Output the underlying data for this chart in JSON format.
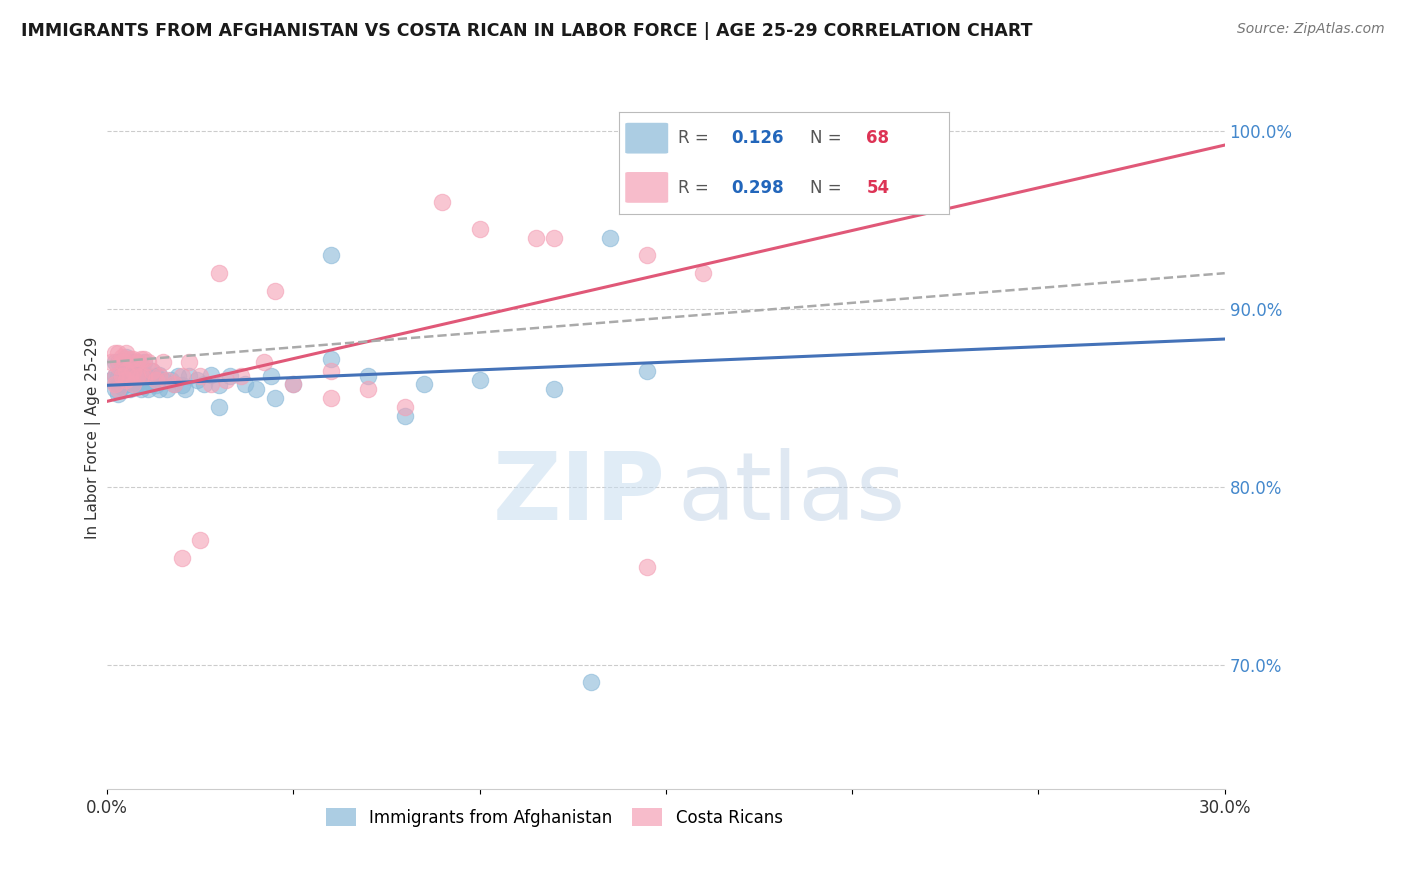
{
  "title": "IMMIGRANTS FROM AFGHANISTAN VS COSTA RICAN IN LABOR FORCE | AGE 25-29 CORRELATION CHART",
  "source": "Source: ZipAtlas.com",
  "ylabel": "In Labor Force | Age 25-29",
  "xlim": [
    0.0,
    0.3
  ],
  "ylim": [
    0.63,
    1.025
  ],
  "xticks": [
    0.0,
    0.05,
    0.1,
    0.15,
    0.2,
    0.25,
    0.3
  ],
  "xticklabels": [
    "0.0%",
    "",
    "",
    "",
    "",
    "",
    "30.0%"
  ],
  "yticks_right": [
    0.7,
    0.8,
    0.9,
    1.0
  ],
  "ytick_labels_right": [
    "70.0%",
    "80.0%",
    "90.0%",
    "100.0%"
  ],
  "blue_color": "#89b8d8",
  "pink_color": "#f4a0b5",
  "blue_line_color": "#4472b8",
  "pink_line_color": "#e05878",
  "gray_dash_color": "#aaaaaa",
  "watermark_zip_color": "#c8ddf0",
  "watermark_atlas_color": "#b8cce4",
  "afg_x": [
    0.001,
    0.002,
    0.002,
    0.002,
    0.003,
    0.003,
    0.003,
    0.003,
    0.004,
    0.004,
    0.004,
    0.004,
    0.005,
    0.005,
    0.005,
    0.005,
    0.006,
    0.006,
    0.006,
    0.007,
    0.007,
    0.007,
    0.008,
    0.008,
    0.008,
    0.009,
    0.009,
    0.009,
    0.01,
    0.01,
    0.01,
    0.011,
    0.011,
    0.012,
    0.012,
    0.013,
    0.013,
    0.014,
    0.014,
    0.015,
    0.016,
    0.017,
    0.018,
    0.019,
    0.02,
    0.021,
    0.022,
    0.024,
    0.026,
    0.028,
    0.03,
    0.033,
    0.037,
    0.04,
    0.044,
    0.05,
    0.06,
    0.07,
    0.085,
    0.1,
    0.12,
    0.135,
    0.06,
    0.13,
    0.145,
    0.03,
    0.045,
    0.08
  ],
  "afg_y": [
    0.86,
    0.862,
    0.855,
    0.87,
    0.858,
    0.862,
    0.87,
    0.852,
    0.86,
    0.856,
    0.863,
    0.87,
    0.858,
    0.862,
    0.868,
    0.873,
    0.855,
    0.862,
    0.87,
    0.857,
    0.863,
    0.86,
    0.858,
    0.863,
    0.87,
    0.855,
    0.86,
    0.868,
    0.857,
    0.863,
    0.87,
    0.855,
    0.862,
    0.858,
    0.865,
    0.857,
    0.862,
    0.855,
    0.863,
    0.86,
    0.855,
    0.86,
    0.858,
    0.862,
    0.857,
    0.855,
    0.862,
    0.86,
    0.858,
    0.863,
    0.857,
    0.862,
    0.858,
    0.855,
    0.862,
    0.858,
    0.872,
    0.862,
    0.858,
    0.86,
    0.855,
    0.94,
    0.93,
    0.69,
    0.865,
    0.845,
    0.85,
    0.84
  ],
  "cr_x": [
    0.001,
    0.002,
    0.002,
    0.002,
    0.003,
    0.003,
    0.003,
    0.004,
    0.004,
    0.004,
    0.005,
    0.005,
    0.005,
    0.006,
    0.006,
    0.007,
    0.007,
    0.007,
    0.008,
    0.008,
    0.009,
    0.009,
    0.01,
    0.01,
    0.011,
    0.012,
    0.013,
    0.014,
    0.015,
    0.016,
    0.018,
    0.02,
    0.022,
    0.025,
    0.028,
    0.032,
    0.036,
    0.042,
    0.05,
    0.06,
    0.07,
    0.09,
    0.1,
    0.12,
    0.145,
    0.16,
    0.03,
    0.045,
    0.06,
    0.08,
    0.025,
    0.02,
    0.115,
    0.145
  ],
  "cr_y": [
    0.87,
    0.875,
    0.862,
    0.858,
    0.875,
    0.868,
    0.855,
    0.873,
    0.862,
    0.87,
    0.875,
    0.865,
    0.86,
    0.872,
    0.862,
    0.872,
    0.865,
    0.858,
    0.87,
    0.862,
    0.872,
    0.862,
    0.872,
    0.862,
    0.87,
    0.865,
    0.86,
    0.862,
    0.87,
    0.86,
    0.858,
    0.862,
    0.87,
    0.862,
    0.858,
    0.86,
    0.862,
    0.87,
    0.858,
    0.865,
    0.855,
    0.96,
    0.945,
    0.94,
    0.93,
    0.92,
    0.92,
    0.91,
    0.85,
    0.845,
    0.77,
    0.76,
    0.94,
    0.755
  ],
  "blue_trend": [
    0.857,
    0.883
  ],
  "pink_trend": [
    0.848,
    0.992
  ],
  "gray_dash_trend": [
    0.87,
    0.92
  ]
}
